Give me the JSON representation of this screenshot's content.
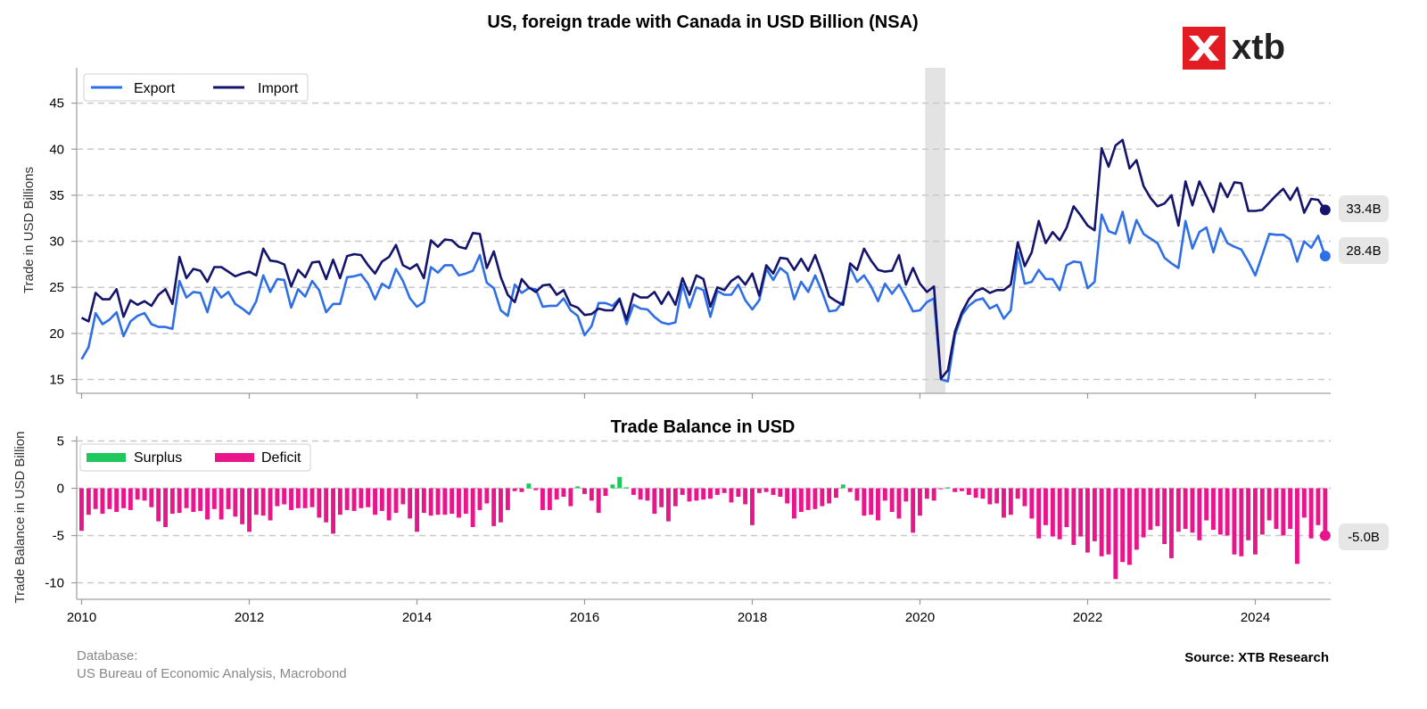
{
  "chart_data": [
    {
      "type": "line",
      "title": "US, foreign trade with Canada in USD Billion (NSA)",
      "ylabel": "Trade in USD Billions",
      "ylim": [
        13.5,
        48
      ],
      "yticks": [
        15,
        20,
        25,
        30,
        35,
        40,
        45
      ],
      "xlim": [
        "2010-01",
        "2024-12"
      ],
      "xticks": [
        "2010",
        "2012",
        "2014",
        "2016",
        "2018",
        "2020",
        "2022",
        "2024"
      ],
      "grid": "horizontal-dashed",
      "legend_position": "top-left",
      "shaded_period": [
        "2020-02",
        "2020-04"
      ],
      "x_start": "2010-01",
      "x_step": "1 month",
      "series": [
        {
          "name": "Export",
          "color": "#2f6fe6",
          "end_label": "28.4B",
          "values": [
            17.2,
            18.5,
            22.2,
            21.0,
            21.5,
            22.3,
            19.7,
            21.3,
            21.9,
            22.2,
            21.0,
            20.7,
            20.7,
            20.5,
            25.7,
            23.9,
            24.5,
            24.4,
            22.3,
            25.0,
            23.9,
            24.5,
            23.2,
            22.7,
            22.1,
            23.5,
            26.3,
            24.5,
            25.9,
            25.8,
            22.8,
            24.8,
            24.0,
            25.7,
            24.7,
            22.3,
            23.2,
            23.2,
            26.1,
            26.2,
            26.4,
            25.4,
            23.7,
            25.4,
            24.9,
            27.0,
            25.7,
            23.8,
            22.9,
            23.4,
            27.2,
            26.6,
            27.4,
            27.4,
            26.3,
            26.5,
            26.8,
            28.5,
            25.5,
            24.9,
            22.5,
            21.9,
            25.3,
            24.4,
            24.9,
            24.8,
            22.9,
            23.0,
            23.0,
            23.8,
            22.5,
            21.9,
            19.8,
            20.8,
            23.3,
            23.3,
            23.0,
            23.8,
            21.0,
            23.1,
            22.7,
            22.6,
            21.8,
            21.2,
            21.0,
            21.2,
            25.3,
            22.8,
            25.0,
            24.7,
            21.8,
            24.6,
            24.2,
            24.2,
            25.3,
            23.6,
            22.6,
            23.6,
            27.0,
            25.8,
            27.1,
            26.5,
            23.7,
            25.6,
            24.5,
            26.3,
            24.5,
            22.4,
            22.5,
            23.5,
            27.2,
            25.6,
            26.3,
            25.1,
            23.5,
            25.4,
            24.3,
            25.3,
            23.9,
            22.4,
            22.5,
            23.4,
            23.8,
            15.0,
            14.8,
            19.8,
            22.0,
            23.0,
            23.6,
            23.8,
            22.7,
            23.1,
            21.6,
            22.5,
            28.8,
            25.4,
            25.6,
            26.9,
            25.9,
            25.9,
            24.7,
            27.4,
            27.8,
            27.7,
            24.9,
            25.6,
            32.9,
            31.1,
            30.8,
            33.2,
            29.8,
            32.3,
            30.8,
            30.3,
            29.8,
            28.2,
            27.6,
            27.1,
            32.2,
            29.2,
            31.0,
            31.5,
            28.8,
            31.4,
            29.8,
            29.4,
            29.1,
            27.8,
            26.3,
            28.5,
            30.8,
            30.7,
            30.7,
            30.2,
            27.8,
            30.0,
            29.3,
            30.6,
            28.4
          ]
        },
        {
          "name": "Import",
          "color": "#14146b",
          "end_label": "33.4B",
          "values": [
            21.7,
            21.3,
            24.4,
            23.7,
            23.7,
            24.8,
            21.8,
            23.6,
            23.1,
            23.5,
            23.0,
            24.2,
            24.8,
            23.2,
            28.3,
            26.0,
            27.0,
            26.8,
            25.6,
            27.2,
            27.2,
            26.7,
            26.2,
            26.5,
            26.7,
            26.3,
            29.2,
            27.9,
            27.8,
            27.5,
            25.1,
            26.9,
            26.1,
            27.7,
            27.8,
            25.9,
            28.0,
            26.0,
            28.4,
            28.6,
            28.5,
            27.4,
            26.5,
            27.8,
            28.3,
            29.6,
            27.4,
            27.0,
            27.5,
            26.0,
            30.1,
            29.4,
            30.2,
            30.1,
            29.4,
            29.2,
            30.9,
            30.8,
            27.1,
            28.9,
            26.1,
            24.2,
            23.4,
            25.9,
            25.0,
            24.5,
            25.2,
            25.3,
            24.2,
            24.7,
            23.1,
            22.8,
            22.0,
            22.1,
            22.7,
            22.5,
            22.5,
            23.7,
            21.5,
            24.3,
            23.9,
            23.9,
            24.5,
            23.2,
            24.5,
            23.1,
            26.0,
            24.2,
            26.3,
            25.9,
            22.9,
            25.0,
            24.7,
            25.7,
            26.2,
            25.3,
            26.5,
            24.1,
            27.4,
            26.5,
            28.2,
            28.1,
            26.9,
            28.1,
            26.8,
            28.5,
            26.4,
            24.0,
            23.5,
            23.1,
            27.6,
            26.9,
            29.2,
            27.9,
            26.9,
            26.7,
            26.8,
            28.5,
            25.3,
            27.1,
            25.4,
            24.5,
            25.1,
            15.1,
            16.0,
            20.2,
            22.3,
            23.7,
            24.6,
            24.9,
            24.4,
            24.7,
            24.7,
            25.3,
            29.9,
            27.3,
            28.8,
            32.2,
            29.8,
            31.0,
            30.1,
            31.5,
            33.8,
            32.8,
            31.7,
            31.2,
            40.1,
            38.1,
            40.4,
            41.0,
            37.9,
            38.8,
            36.0,
            34.7,
            33.8,
            34.1,
            35.0,
            31.7,
            36.5,
            33.9,
            36.5,
            34.9,
            33.2,
            36.3,
            34.8,
            36.4,
            36.3,
            33.3,
            33.3,
            33.4,
            34.2,
            35.0,
            35.7,
            34.5,
            35.8,
            33.1,
            34.6,
            34.5,
            33.4
          ]
        }
      ]
    },
    {
      "type": "bar",
      "title": "Trade Balance in USD",
      "ylabel": "Trade Balance in USD Billion",
      "ylim": [
        -11.5,
        5
      ],
      "yticks": [
        -10,
        -5,
        0,
        5
      ],
      "grid": "horizontal-dashed",
      "legend_position": "top-left",
      "x_start": "2010-01",
      "x_step": "1 month",
      "series": [
        {
          "name": "Surplus",
          "color": "#1ec85c"
        },
        {
          "name": "Deficit",
          "color": "#e8168a"
        }
      ],
      "end_label": "-5.0B",
      "end_label_color": "#e8168a",
      "values": [
        -4.5,
        -2.8,
        -2.2,
        -2.7,
        -2.2,
        -2.5,
        -2.1,
        -2.3,
        -1.2,
        -1.3,
        -2.0,
        -3.5,
        -4.1,
        -2.7,
        -2.6,
        -2.1,
        -2.5,
        -2.4,
        -3.3,
        -2.2,
        -3.3,
        -2.2,
        -3.0,
        -3.8,
        -4.6,
        -2.8,
        -2.9,
        -3.4,
        -1.9,
        -1.7,
        -2.3,
        -2.1,
        -2.1,
        -2.0,
        -3.1,
        -3.6,
        -4.8,
        -2.8,
        -2.3,
        -2.4,
        -2.1,
        -2.0,
        -2.8,
        -2.4,
        -3.4,
        -2.6,
        -1.7,
        -3.2,
        -4.6,
        -2.6,
        -2.9,
        -2.8,
        -2.8,
        -2.7,
        -3.1,
        -2.7,
        -4.1,
        -2.3,
        -1.6,
        -4.0,
        -3.6,
        -2.3,
        -0.3,
        -0.4,
        0.5,
        -0.2,
        -2.3,
        -2.3,
        -1.2,
        -0.9,
        -1.9,
        0.2,
        -0.6,
        -1.3,
        -2.6,
        -0.8,
        0.4,
        1.2,
        0.1,
        -0.7,
        -1.2,
        -1.3,
        -2.7,
        -2.0,
        -3.5,
        -1.9,
        -0.7,
        -1.4,
        -1.3,
        -1.2,
        -1.1,
        -0.7,
        -0.5,
        -1.5,
        -0.9,
        -1.7,
        -3.9,
        -0.5,
        -0.4,
        -0.7,
        -0.9,
        -1.6,
        -3.2,
        -2.5,
        -2.3,
        -2.2,
        -1.9,
        -1.6,
        -1.0,
        0.4,
        -0.4,
        -1.3,
        -2.9,
        -2.8,
        -3.4,
        -1.3,
        -2.5,
        -3.2,
        -1.4,
        -4.7,
        -2.9,
        -1.1,
        -1.3,
        -0.1,
        0.1,
        -0.4,
        -0.3,
        -0.7,
        -1.0,
        -1.1,
        -1.7,
        -1.6,
        -3.1,
        -2.8,
        -1.1,
        -1.9,
        -3.2,
        -5.3,
        -3.9,
        -5.1,
        -5.4,
        -4.1,
        -6.0,
        -5.1,
        -6.8,
        -5.6,
        -7.2,
        -7.0,
        -9.6,
        -7.8,
        -8.1,
        -6.5,
        -5.2,
        -4.4,
        -4.0,
        -5.9,
        -7.4,
        -4.6,
        -4.3,
        -4.7,
        -5.5,
        -3.4,
        -4.4,
        -4.9,
        -5.0,
        -7.0,
        -7.2,
        -5.5,
        -7.0,
        -4.9,
        -3.4,
        -4.3,
        -5.0,
        -4.3,
        -8.0,
        -3.1,
        -5.3,
        -3.9,
        -5.0
      ]
    }
  ],
  "labels": {
    "main_title": "US, foreign trade with Canada in USD Billion (NSA)",
    "top_ylabel": "Trade in USD Billions",
    "bottom_title": "Trade Balance in USD",
    "bottom_ylabel": "Trade Balance in USD Billion",
    "legend_export": "Export",
    "legend_import": "Import",
    "legend_surplus": "Surplus",
    "legend_deficit": "Deficit",
    "end_import": "33.4B",
    "end_export": "28.4B",
    "end_balance": "-5.0B",
    "footer_db_line1": "Database:",
    "footer_db_line2": "US Bureau of Economic Analysis, Macrobond",
    "source": "Source: XTB Research",
    "logo": "xtb"
  },
  "top_ytick_labels": [
    "15",
    "20",
    "25",
    "30",
    "35",
    "40",
    "45"
  ],
  "bottom_ytick_labels": [
    "-10",
    "-5",
    "0",
    "5"
  ],
  "xtick_labels": [
    "2010",
    "2012",
    "2014",
    "2016",
    "2018",
    "2020",
    "2022",
    "2024"
  ],
  "colors": {
    "export": "#2f6fe6",
    "import": "#14146b",
    "surplus": "#1ec85c",
    "deficit": "#e8168a",
    "shade": "#e3e3e3",
    "grid": "#c8c8c8",
    "logo_red": "#e31b23"
  }
}
